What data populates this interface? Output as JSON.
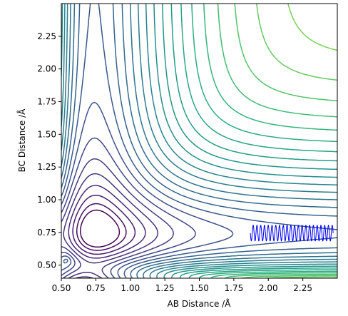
{
  "chart_data": {
    "type": "contour",
    "title": "",
    "xlabel": "AB Distance /Å",
    "ylabel": "BC Distance /Å",
    "xlim": [
      0.5,
      2.5
    ],
    "ylim": [
      0.4,
      2.5
    ],
    "xticks": [
      "0.50",
      "0.75",
      "1.00",
      "1.25",
      "1.50",
      "1.75",
      "2.00",
      "2.25"
    ],
    "yticks": [
      "0.50",
      "0.75",
      "1.00",
      "1.25",
      "1.50",
      "1.75",
      "2.00",
      "2.25"
    ],
    "xtick_values": [
      0.5,
      0.75,
      1.0,
      1.25,
      1.5,
      1.75,
      2.0,
      2.25
    ],
    "ytick_values": [
      0.5,
      0.75,
      1.0,
      1.25,
      1.5,
      1.75,
      2.0,
      2.25
    ],
    "colormap": "viridis",
    "grid": false,
    "trajectory": {
      "color": "#0000ff",
      "x_start": 2.47,
      "x_end": 1.87,
      "y_center": 0.745,
      "y_amplitude": 0.06,
      "oscillations": 22
    }
  }
}
